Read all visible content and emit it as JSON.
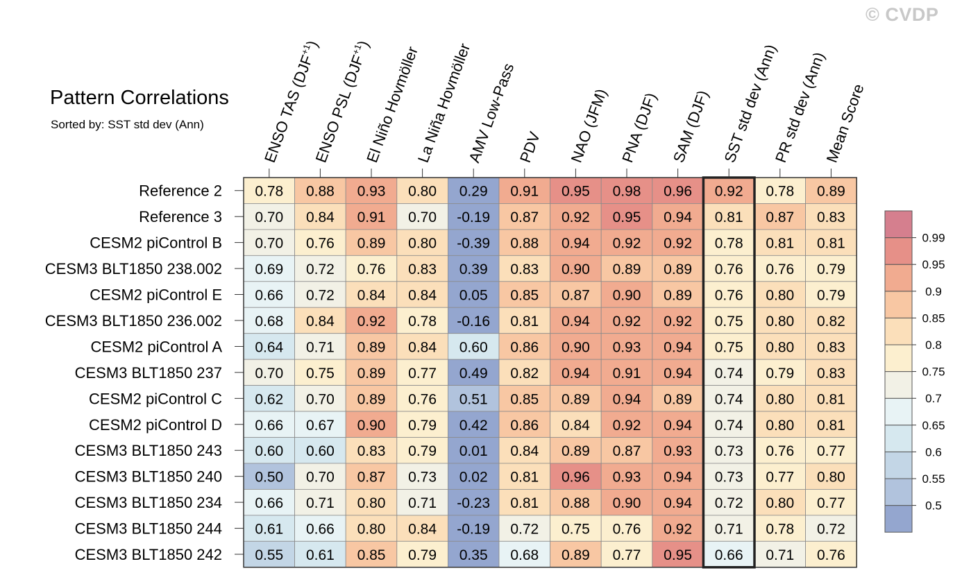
{
  "watermark": "© CVDP",
  "chart_data": {
    "type": "heatmap",
    "title": "Pattern Correlations",
    "subtitle": "Sorted by: SST std dev (Ann)",
    "highlight_column": "SST std dev (Ann)",
    "columns": [
      {
        "label": "ENSO TAS (DJF",
        "sup": "+1",
        "close": ")"
      },
      {
        "label": "ENSO PSL (DJF",
        "sup": "+1",
        "close": ")"
      },
      {
        "label": "El Niño Hovmöller"
      },
      {
        "label": "La Niña Hovmöller"
      },
      {
        "label": "AMV Low-Pass"
      },
      {
        "label": "PDV"
      },
      {
        "label": "NAO (JFM)"
      },
      {
        "label": "PNA (DJF)"
      },
      {
        "label": "SAM (DJF)"
      },
      {
        "label": "SST std dev (Ann)"
      },
      {
        "label": "PR std dev (Ann)"
      },
      {
        "label": "Mean Score"
      }
    ],
    "rows": [
      "Reference 2",
      "Reference 3",
      "CESM2 piControl B",
      "CESM3 BLT1850 238.002",
      "CESM2 piControl E",
      "CESM3 BLT1850 236.002",
      "CESM2 piControl A",
      "CESM3 BLT1850 237",
      "CESM2 piControl C",
      "CESM2 piControl D",
      "CESM3 BLT1850 243",
      "CESM3 BLT1850 240",
      "CESM3 BLT1850 234",
      "CESM3 BLT1850 244",
      "CESM3 BLT1850 242"
    ],
    "values": [
      [
        "0.78",
        "0.88",
        "0.93",
        "0.80",
        "0.29",
        "0.91",
        "0.95",
        "0.98",
        "0.96",
        "0.92",
        "0.78",
        "0.89"
      ],
      [
        "0.70",
        "0.84",
        "0.91",
        "0.70",
        "-0.19",
        "0.87",
        "0.92",
        "0.95",
        "0.94",
        "0.81",
        "0.87",
        "0.83"
      ],
      [
        "0.70",
        "0.76",
        "0.89",
        "0.80",
        "-0.39",
        "0.88",
        "0.94",
        "0.92",
        "0.92",
        "0.78",
        "0.81",
        "0.81"
      ],
      [
        "0.69",
        "0.72",
        "0.76",
        "0.83",
        "0.39",
        "0.83",
        "0.90",
        "0.89",
        "0.89",
        "0.76",
        "0.76",
        "0.79"
      ],
      [
        "0.66",
        "0.72",
        "0.84",
        "0.84",
        "0.05",
        "0.85",
        "0.87",
        "0.90",
        "0.89",
        "0.76",
        "0.80",
        "0.79"
      ],
      [
        "0.68",
        "0.84",
        "0.92",
        "0.78",
        "-0.16",
        "0.81",
        "0.94",
        "0.92",
        "0.92",
        "0.75",
        "0.80",
        "0.82"
      ],
      [
        "0.64",
        "0.71",
        "0.89",
        "0.84",
        "0.60",
        "0.86",
        "0.90",
        "0.93",
        "0.94",
        "0.75",
        "0.80",
        "0.83"
      ],
      [
        "0.70",
        "0.75",
        "0.89",
        "0.77",
        "0.49",
        "0.82",
        "0.94",
        "0.91",
        "0.94",
        "0.74",
        "0.79",
        "0.83"
      ],
      [
        "0.62",
        "0.70",
        "0.89",
        "0.76",
        "0.51",
        "0.85",
        "0.89",
        "0.94",
        "0.89",
        "0.74",
        "0.80",
        "0.81"
      ],
      [
        "0.66",
        "0.67",
        "0.90",
        "0.79",
        "0.42",
        "0.86",
        "0.84",
        "0.92",
        "0.94",
        "0.74",
        "0.80",
        "0.81"
      ],
      [
        "0.60",
        "0.60",
        "0.83",
        "0.79",
        "0.01",
        "0.84",
        "0.89",
        "0.87",
        "0.93",
        "0.73",
        "0.76",
        "0.77"
      ],
      [
        "0.50",
        "0.70",
        "0.87",
        "0.73",
        "0.02",
        "0.81",
        "0.96",
        "0.93",
        "0.94",
        "0.73",
        "0.77",
        "0.80"
      ],
      [
        "0.66",
        "0.71",
        "0.80",
        "0.71",
        "-0.23",
        "0.81",
        "0.88",
        "0.90",
        "0.94",
        "0.72",
        "0.80",
        "0.77"
      ],
      [
        "0.61",
        "0.66",
        "0.80",
        "0.84",
        "-0.19",
        "0.72",
        "0.75",
        "0.76",
        "0.92",
        "0.71",
        "0.78",
        "0.72"
      ],
      [
        "0.55",
        "0.61",
        "0.85",
        "0.79",
        "0.35",
        "0.68",
        "0.89",
        "0.77",
        "0.95",
        "0.66",
        "0.71",
        "0.76"
      ]
    ],
    "colorbar": {
      "levels": [
        "0.5",
        "0.55",
        "0.6",
        "0.65",
        "0.7",
        "0.75",
        "0.8",
        "0.85",
        "0.9",
        "0.95",
        "0.99"
      ],
      "colors": [
        "#94a6cf",
        "#b1c3dd",
        "#c3d6e6",
        "#d6e8ef",
        "#e8f3f5",
        "#f2f1e6",
        "#fcefcf",
        "#fbdfba",
        "#f8c7a3",
        "#f1ab90",
        "#e69088",
        "#d57f8e"
      ]
    }
  }
}
